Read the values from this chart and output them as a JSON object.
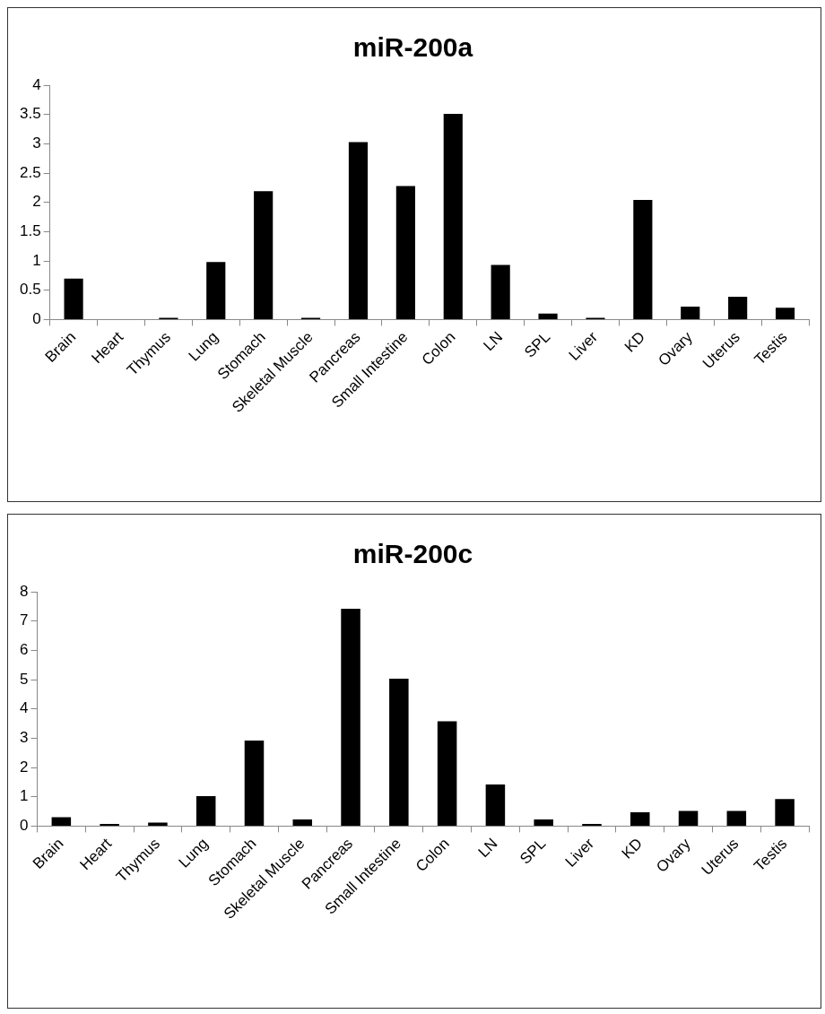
{
  "chart_data": [
    {
      "type": "bar",
      "title": "miR-200a",
      "categories": [
        "Brain",
        "Heart",
        "Thymus",
        "Lung",
        "Stomach",
        "Skeletal Muscle",
        "Pancreas",
        "Small Intestine",
        "Colon",
        "LN",
        "SPL",
        "Liver",
        "KD",
        "Ovary",
        "Uterus",
        "Testis"
      ],
      "values": [
        0.7,
        0,
        0.03,
        0.98,
        2.19,
        0.03,
        3.03,
        2.28,
        3.51,
        0.93,
        0.1,
        0.03,
        2.04,
        0.22,
        0.39,
        0.2
      ],
      "color": "#000000",
      "ylim": [
        0,
        4
      ],
      "yticks": [
        0,
        0.5,
        1,
        1.5,
        2,
        2.5,
        3,
        3.5,
        4
      ],
      "grid": false,
      "legend": false
    },
    {
      "type": "bar",
      "title": "miR-200c",
      "categories": [
        "Brain",
        "Heart",
        "Thymus",
        "Lung",
        "Stomach",
        "Skeletal Muscle",
        "Pancreas",
        "Small Intestine",
        "Colon",
        "LN",
        "SPL",
        "Liver",
        "KD",
        "Ovary",
        "Uterus",
        "Testis"
      ],
      "values": [
        0.3,
        0.07,
        0.12,
        1.02,
        2.92,
        0.23,
        7.42,
        5.03,
        3.58,
        1.42,
        0.23,
        0.07,
        0.47,
        0.52,
        0.52,
        0.92
      ],
      "color": "#000000",
      "ylim": [
        0,
        8
      ],
      "yticks": [
        0,
        1,
        2,
        3,
        4,
        5,
        6,
        7,
        8
      ],
      "grid": false,
      "legend": false
    }
  ]
}
